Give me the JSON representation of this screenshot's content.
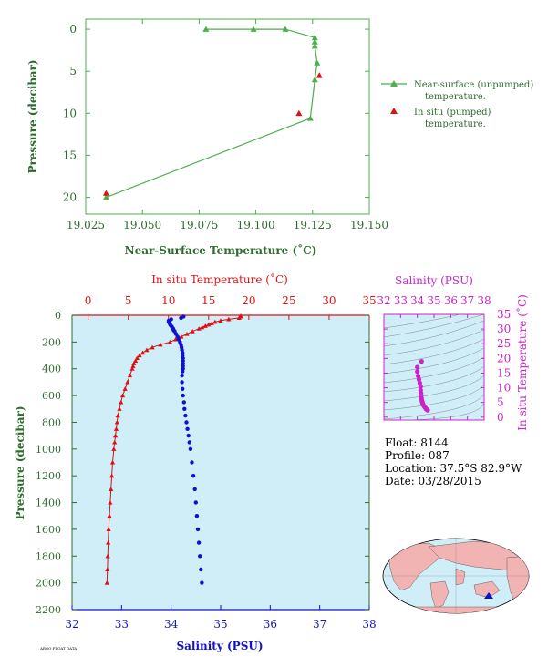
{
  "colors": {
    "green": "#4cae4c",
    "green_dark": "#2f6b2f",
    "red": "#dd1111",
    "blue": "#1111cc",
    "magenta": "#cc22cc",
    "panel_bg": "#cfeef8",
    "black": "#000000"
  },
  "float_info": {
    "float": "Float:  8144",
    "profile": "Profile:  087",
    "location": "Location:  37.5°S  82.9°W",
    "date": "Date:  03/28/2015"
  },
  "footer": "ARGO FLOAT DATA",
  "chart_data": [
    {
      "id": "near_surface",
      "type": "line",
      "xlabel": "Near-Surface Temperature (˚C)",
      "ylabel": "Pressure (decibar)",
      "xlim": [
        19.025,
        19.15
      ],
      "ylim": [
        22,
        -1.2
      ],
      "xticks": [
        19.025,
        19.05,
        19.075,
        19.1,
        19.125,
        19.15
      ],
      "xtick_labels": [
        "19.025",
        "19.050",
        "19.075",
        "19.100",
        "19.125",
        "19.150"
      ],
      "yticks": [
        0,
        5,
        10,
        15,
        20
      ],
      "ytick_labels": [
        "0",
        "5",
        "10",
        "15",
        "20"
      ],
      "legend_position": "right",
      "series": [
        {
          "name": "Near-surface (unpumped) temperature.",
          "name_lines": [
            "Near-surface (unpumped)",
            "temperature."
          ],
          "style": "line-triangle",
          "color": "green",
          "x": [
            19.078,
            19.099,
            19.113,
            19.126,
            19.126,
            19.126,
            19.127,
            19.126,
            19.124,
            19.034
          ],
          "y": [
            0.0,
            0.0,
            0.0,
            1.0,
            1.5,
            2.0,
            4.0,
            6.0,
            10.6,
            20.0
          ]
        },
        {
          "name": "In situ (pumped) temperature.",
          "name_lines": [
            "In situ (pumped)",
            "temperature."
          ],
          "style": "triangle",
          "color": "red",
          "x": [
            19.128,
            19.119,
            19.034
          ],
          "y": [
            5.5,
            10.0,
            19.5
          ]
        }
      ]
    },
    {
      "id": "profile",
      "type": "line",
      "ylabel": "Pressure (decibar)",
      "ylim": [
        2200,
        0
      ],
      "yticks": [
        0,
        200,
        400,
        600,
        800,
        1000,
        1200,
        1400,
        1600,
        1800,
        2000,
        2200
      ],
      "ytick_labels": [
        "0",
        "200",
        "400",
        "600",
        "800",
        "1000",
        "1200",
        "1400",
        "1600",
        "1800",
        "2000",
        "2200"
      ],
      "top_axis": {
        "label": "In situ Temperature (˚C)",
        "range": [
          -2,
          35
        ],
        "ticks": [
          0,
          5,
          10,
          15,
          20,
          25,
          30,
          35
        ],
        "tick_labels": [
          "0",
          "5",
          "10",
          "15",
          "20",
          "25",
          "30",
          "35"
        ]
      },
      "bottom_axis": {
        "label": "Salinity (PSU)",
        "range": [
          32,
          38
        ],
        "ticks": [
          32,
          33,
          34,
          35,
          36,
          37,
          38
        ],
        "tick_labels": [
          "32",
          "33",
          "34",
          "35",
          "36",
          "37",
          "38"
        ]
      },
      "series": [
        {
          "quantity": "temperature",
          "style": "line-triangle",
          "color": "red",
          "pressure": [
            5,
            10,
            20,
            30,
            40,
            50,
            60,
            70,
            80,
            90,
            100,
            120,
            140,
            160,
            180,
            200,
            220,
            240,
            260,
            280,
            300,
            320,
            340,
            360,
            380,
            400,
            450,
            500,
            550,
            600,
            650,
            700,
            750,
            800,
            850,
            900,
            950,
            1000,
            1100,
            1200,
            1300,
            1400,
            1500,
            1600,
            1700,
            1800,
            1900,
            2000
          ],
          "values": [
            19.0,
            19.0,
            18.8,
            17.5,
            16.5,
            15.8,
            15.4,
            15.0,
            14.6,
            14.2,
            13.8,
            13.0,
            12.3,
            11.6,
            10.9,
            10.2,
            9.0,
            8.0,
            7.3,
            6.8,
            6.4,
            6.1,
            5.9,
            5.7,
            5.6,
            5.5,
            5.2,
            4.9,
            4.6,
            4.3,
            4.1,
            3.9,
            3.7,
            3.6,
            3.5,
            3.4,
            3.3,
            3.2,
            3.05,
            2.95,
            2.85,
            2.75,
            2.65,
            2.55,
            2.5,
            2.45,
            2.4,
            2.35
          ]
        },
        {
          "quantity": "salinity",
          "style": "dots",
          "color": "blue",
          "pressure": [
            10,
            20,
            30,
            40,
            50,
            60,
            70,
            80,
            90,
            100,
            110,
            120,
            140,
            160,
            180,
            200,
            220,
            240,
            260,
            280,
            300,
            320,
            340,
            360,
            380,
            400,
            420,
            450,
            500,
            550,
            600,
            650,
            700,
            750,
            800,
            850,
            900,
            950,
            1000,
            1100,
            1200,
            1300,
            1400,
            1500,
            1600,
            1700,
            1800,
            1900,
            2000
          ],
          "values": [
            34.25,
            34.2,
            34.0,
            33.95,
            33.95,
            33.97,
            33.98,
            34.0,
            34.02,
            34.04,
            34.05,
            34.07,
            34.1,
            34.13,
            34.15,
            34.18,
            34.2,
            34.21,
            34.22,
            34.23,
            34.23,
            34.24,
            34.24,
            34.24,
            34.24,
            34.24,
            34.23,
            34.22,
            34.22,
            34.23,
            34.24,
            34.26,
            34.27,
            34.29,
            34.31,
            34.33,
            34.35,
            34.37,
            34.39,
            34.42,
            34.45,
            34.48,
            34.5,
            34.52,
            34.54,
            34.56,
            34.58,
            34.6,
            34.62
          ]
        }
      ]
    },
    {
      "id": "ts_diagram",
      "type": "scatter",
      "title": "Salinity (PSU)",
      "xlabel": "",
      "ylabel": "In situ Temperature (˚C)",
      "xlim": [
        32,
        38
      ],
      "ylim": [
        -1,
        35
      ],
      "xticks": [
        32,
        33,
        34,
        35,
        36,
        37,
        38
      ],
      "xtick_labels": [
        "32",
        "33",
        "34",
        "35",
        "36",
        "37",
        "38"
      ],
      "yticks": [
        0,
        5,
        10,
        15,
        20,
        25,
        30,
        35
      ],
      "ytick_labels": [
        "0",
        "5",
        "10",
        "15",
        "20",
        "25",
        "30",
        "35"
      ],
      "series": [
        {
          "style": "dots",
          "color": "magenta",
          "x": [
            34.25,
            34.0,
            34.0,
            34.05,
            34.1,
            34.15,
            34.2,
            34.2,
            34.22,
            34.22,
            34.24,
            34.26,
            34.28,
            34.3,
            34.32,
            34.34,
            34.37,
            34.4,
            34.43,
            34.46,
            34.5,
            34.53,
            34.56,
            34.6,
            34.62
          ],
          "y": [
            19.0,
            17.0,
            15.5,
            14.0,
            12.8,
            11.6,
            10.4,
            9.2,
            8.2,
            7.4,
            6.6,
            6.0,
            5.5,
            5.1,
            4.7,
            4.4,
            4.1,
            3.8,
            3.5,
            3.3,
            3.0,
            2.8,
            2.6,
            2.45,
            2.35
          ]
        }
      ]
    }
  ]
}
